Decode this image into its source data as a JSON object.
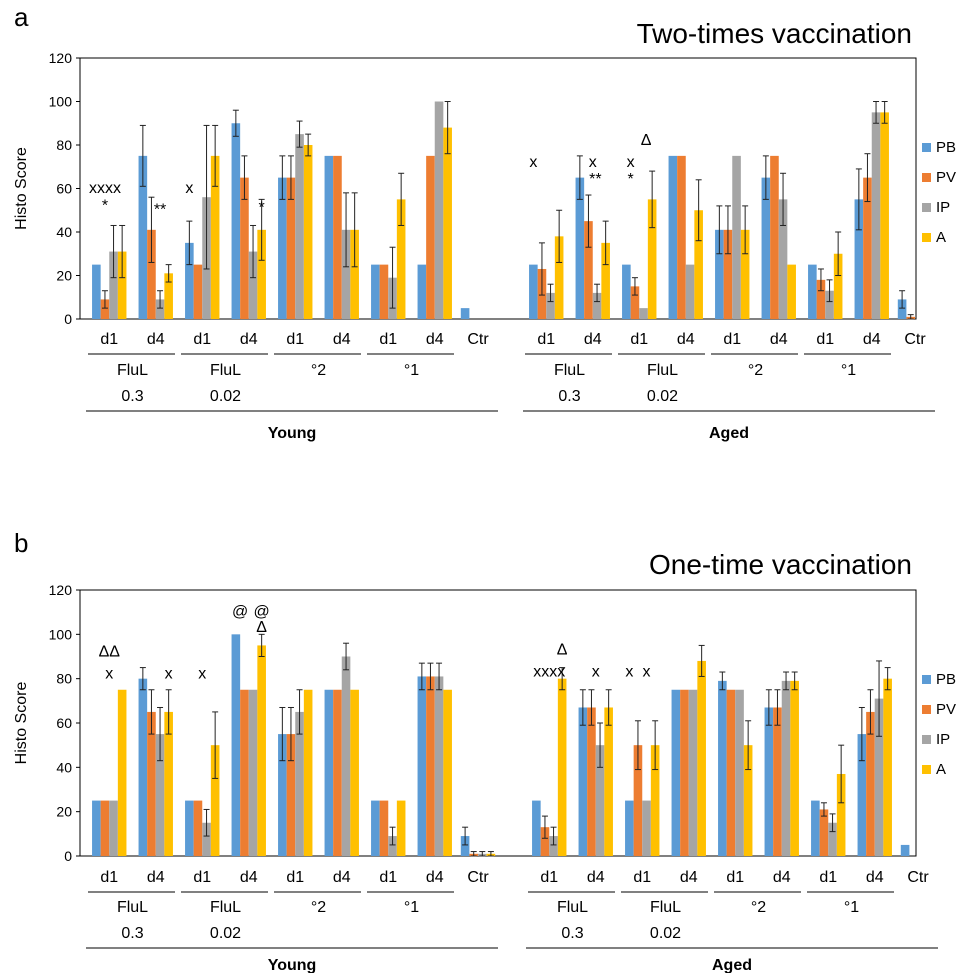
{
  "colors": {
    "PB": "#5B9BD5",
    "PV": "#ED7D31",
    "IP": "#A5A5A5",
    "A": "#FFC000"
  },
  "chart_data": [
    {
      "type": "bar",
      "panel_label": "a",
      "title": "Two-times vaccination",
      "ylabel": "Histo Score",
      "ylim": [
        0,
        120
      ],
      "yticks": [
        0,
        20,
        40,
        60,
        80,
        100,
        120
      ],
      "grid": false,
      "legend_position": "right",
      "series_names": [
        "PB",
        "PV",
        "IP",
        "A"
      ],
      "sections": [
        {
          "name": "Young",
          "groups": [
            {
              "lines": [
                "FluL",
                "0.3"
              ],
              "cats": [
                "d1",
                "d4"
              ]
            },
            {
              "lines": [
                "FluL",
                "0.02"
              ],
              "cats": [
                "d1",
                "d4"
              ]
            },
            {
              "lines": [
                "°2"
              ],
              "cats": [
                "d1",
                "d4"
              ]
            },
            {
              "lines": [
                "°1"
              ],
              "cats": [
                "d1",
                "d4"
              ]
            }
          ],
          "ctr": "Ctr"
        },
        {
          "name": "Aged",
          "groups": [
            {
              "lines": [
                "FluL",
                "0.3"
              ],
              "cats": [
                "d1",
                "d4"
              ]
            },
            {
              "lines": [
                "FluL",
                "0.02"
              ],
              "cats": [
                "d1",
                "d4"
              ]
            },
            {
              "lines": [
                "°2"
              ],
              "cats": [
                "d1",
                "d4"
              ]
            },
            {
              "lines": [
                "°1"
              ],
              "cats": [
                "d1",
                "d4"
              ]
            }
          ],
          "ctr": "Ctr"
        }
      ],
      "values": [
        [
          [
            25,
            9,
            31,
            31
          ],
          [
            75,
            41,
            9,
            21
          ],
          [
            35,
            25,
            56,
            75
          ],
          [
            90,
            65,
            31,
            41
          ],
          [
            65,
            65,
            85,
            80
          ],
          [
            75,
            75,
            41,
            41
          ],
          [
            25,
            25,
            19,
            55
          ],
          [
            25,
            75,
            100,
            88
          ],
          [
            5,
            0,
            0,
            0
          ]
        ],
        [
          [
            25,
            23,
            12,
            38
          ],
          [
            65,
            45,
            12,
            35
          ],
          [
            25,
            15,
            5,
            55
          ],
          [
            75,
            75,
            25,
            50
          ],
          [
            41,
            41,
            75,
            41
          ],
          [
            65,
            75,
            55,
            25
          ],
          [
            25,
            18,
            13,
            30
          ],
          [
            55,
            65,
            95,
            95
          ],
          [
            9,
            1,
            0,
            0
          ]
        ]
      ],
      "errors": [
        [
          [
            0,
            4,
            12,
            12
          ],
          [
            14,
            15,
            4,
            4
          ],
          [
            10,
            0,
            33,
            14
          ],
          [
            6,
            10,
            12,
            14
          ],
          [
            10,
            10,
            6,
            5
          ],
          [
            0,
            0,
            17,
            17
          ],
          [
            0,
            0,
            14,
            12
          ],
          [
            0,
            0,
            0,
            12
          ],
          [
            0,
            0,
            0,
            0
          ]
        ],
        [
          [
            0,
            12,
            4,
            12
          ],
          [
            10,
            12,
            4,
            10
          ],
          [
            0,
            4,
            0,
            13
          ],
          [
            0,
            0,
            0,
            14
          ],
          [
            11,
            11,
            0,
            11
          ],
          [
            10,
            0,
            12,
            0
          ],
          [
            0,
            5,
            5,
            10
          ],
          [
            14,
            11,
            5,
            5
          ],
          [
            4,
            1,
            0,
            0
          ]
        ]
      ],
      "annotations": [
        {
          "text": "xxxx",
          "cat": 0,
          "bar": 1,
          "value": 58
        },
        {
          "text": "*",
          "cat": 0,
          "bar": 1,
          "value": 50
        },
        {
          "text": "**",
          "cat": 1,
          "bar": 2,
          "value": 48
        },
        {
          "text": "x",
          "cat": 2,
          "bar": 0,
          "value": 58
        },
        {
          "text": "*",
          "cat": 3,
          "bar": 3,
          "value": 49
        },
        {
          "text": "x",
          "cat": 9,
          "bar": 0,
          "value": 70
        },
        {
          "text": "x",
          "cat": 10,
          "bar": 1.5,
          "value": 70
        },
        {
          "text": "**",
          "cat": 10,
          "bar": 1.8,
          "value": 62
        },
        {
          "text": "x",
          "cat": 11,
          "bar": 0.5,
          "value": 70
        },
        {
          "text": "*",
          "cat": 11,
          "bar": 0.5,
          "value": 62
        },
        {
          "text": "Δ",
          "cat": 11,
          "bar": 2.3,
          "value": 80
        }
      ]
    },
    {
      "type": "bar",
      "panel_label": "b",
      "title": "One-time vaccination",
      "ylabel": "Histo Score",
      "ylim": [
        0,
        120
      ],
      "yticks": [
        0,
        20,
        40,
        60,
        80,
        100,
        120
      ],
      "grid": false,
      "legend_position": "right",
      "series_names": [
        "PB",
        "PV",
        "IP",
        "A"
      ],
      "sections": [
        {
          "name": "Young",
          "groups": [
            {
              "lines": [
                "FluL",
                "0.3"
              ],
              "cats": [
                "d1",
                "d4"
              ]
            },
            {
              "lines": [
                "FluL",
                "0.02"
              ],
              "cats": [
                "d1",
                "d4"
              ]
            },
            {
              "lines": [
                "°2"
              ],
              "cats": [
                "d1",
                "d4"
              ]
            },
            {
              "lines": [
                "°1"
              ],
              "cats": [
                "d1",
                "d4"
              ]
            }
          ],
          "ctr": "Ctr"
        },
        {
          "name": "Aged",
          "groups": [
            {
              "lines": [
                "FluL",
                "0.3"
              ],
              "cats": [
                "d1",
                "d4"
              ]
            },
            {
              "lines": [
                "FluL",
                "0.02"
              ],
              "cats": [
                "d1",
                "d4"
              ]
            },
            {
              "lines": [
                "°2"
              ],
              "cats": [
                "d1",
                "d4"
              ]
            },
            {
              "lines": [
                "°1"
              ],
              "cats": [
                "d1",
                "d4"
              ]
            }
          ],
          "ctr": "Ctr"
        }
      ],
      "values": [
        [
          [
            25,
            25,
            25,
            75
          ],
          [
            80,
            65,
            55,
            65
          ],
          [
            25,
            25,
            15,
            50
          ],
          [
            100,
            75,
            75,
            95
          ],
          [
            55,
            55,
            65,
            75
          ],
          [
            75,
            75,
            90,
            75
          ],
          [
            25,
            25,
            9,
            25
          ],
          [
            81,
            81,
            81,
            75
          ],
          [
            9,
            1,
            1,
            1
          ]
        ],
        [
          [
            25,
            13,
            9,
            80
          ],
          [
            67,
            67,
            50,
            67
          ],
          [
            25,
            50,
            25,
            50
          ],
          [
            75,
            75,
            75,
            88
          ],
          [
            79,
            75,
            75,
            50
          ],
          [
            67,
            67,
            79,
            79
          ],
          [
            25,
            21,
            15,
            37
          ],
          [
            55,
            65,
            71,
            80
          ],
          [
            5,
            0,
            0,
            0
          ]
        ]
      ],
      "errors": [
        [
          [
            0,
            0,
            0,
            0
          ],
          [
            5,
            10,
            12,
            10
          ],
          [
            0,
            0,
            6,
            15
          ],
          [
            0,
            0,
            0,
            5
          ],
          [
            12,
            12,
            10,
            0
          ],
          [
            0,
            0,
            6,
            0
          ],
          [
            0,
            0,
            4,
            0
          ],
          [
            6,
            6,
            6,
            0
          ],
          [
            4,
            1,
            1,
            1
          ]
        ],
        [
          [
            0,
            5,
            4,
            5
          ],
          [
            8,
            8,
            10,
            8
          ],
          [
            0,
            11,
            0,
            11
          ],
          [
            0,
            0,
            0,
            7
          ],
          [
            4,
            0,
            0,
            11
          ],
          [
            8,
            8,
            4,
            4
          ],
          [
            0,
            3,
            4,
            13
          ],
          [
            12,
            10,
            17,
            5
          ],
          [
            0,
            0,
            0,
            0
          ]
        ]
      ],
      "annotations": [
        {
          "text": "ΔΔ",
          "cat": 0,
          "bar": 1.5,
          "value": 90
        },
        {
          "text": "x",
          "cat": 0,
          "bar": 1.5,
          "value": 80
        },
        {
          "text": "x",
          "cat": 1,
          "bar": 3,
          "value": 80
        },
        {
          "text": "x",
          "cat": 2,
          "bar": 1.5,
          "value": 80
        },
        {
          "text": "@",
          "cat": 3,
          "bar": 0.5,
          "value": 108
        },
        {
          "text": "@",
          "cat": 3,
          "bar": 3,
          "value": 108
        },
        {
          "text": "Δ",
          "cat": 3,
          "bar": 3,
          "value": 101
        },
        {
          "text": "Δ",
          "cat": 9,
          "bar": 3,
          "value": 91
        },
        {
          "text": "xxxx",
          "cat": 9,
          "bar": 1.5,
          "value": 81
        },
        {
          "text": "x",
          "cat": 10,
          "bar": 1.5,
          "value": 81
        },
        {
          "text": "x",
          "cat": 11,
          "bar": 0,
          "value": 81
        },
        {
          "text": "x",
          "cat": 11,
          "bar": 2,
          "value": 81
        }
      ]
    }
  ]
}
